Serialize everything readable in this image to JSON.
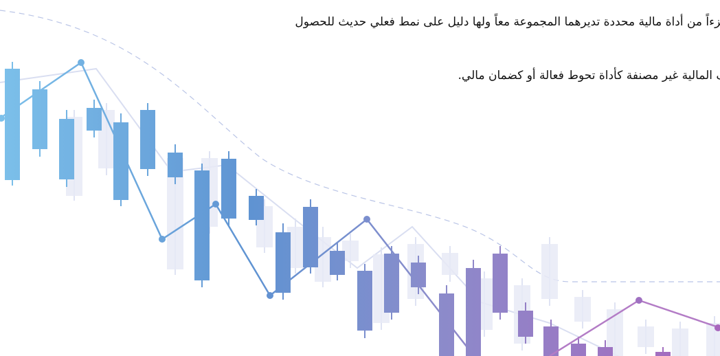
{
  "paragraph": {
    "lines": [
      "جزءاً من أداة مالية محددة تديرهما المجموعة معاً ولها دليل على نمط فعلي حديث للحصول",
      "ف المالية غير مصنفة كأداة تحوط فعالة أو كضمان مالي."
    ]
  }
}
